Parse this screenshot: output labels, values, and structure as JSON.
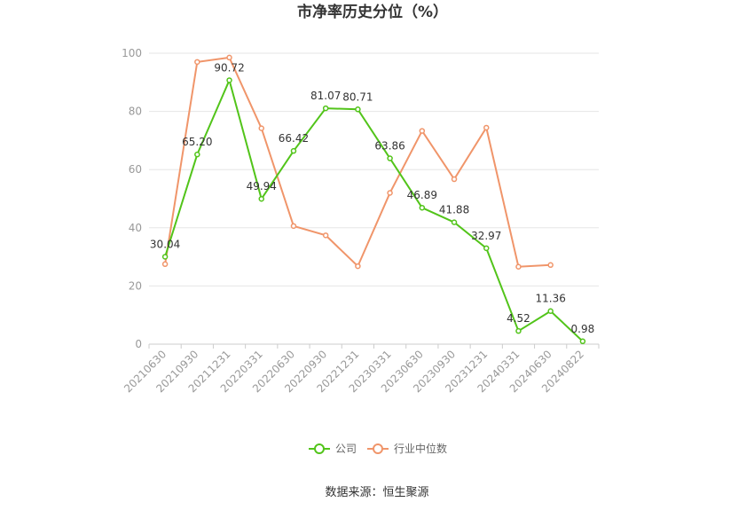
{
  "chart_data": {
    "type": "line",
    "title": "市净率历史分位（%）",
    "categories": [
      "20210630",
      "20210930",
      "20211231",
      "20220331",
      "20220630",
      "20220930",
      "20221231",
      "20230331",
      "20230630",
      "20230930",
      "20231231",
      "20240331",
      "20240630",
      "20240822"
    ],
    "ylim": [
      0,
      100
    ],
    "yticks": [
      0,
      20,
      40,
      60,
      80,
      100
    ],
    "grid": true,
    "legend_position": "bottom",
    "series": [
      {
        "name": "公司",
        "color": "#52c41a",
        "values": [
          30.04,
          65.2,
          90.72,
          49.94,
          66.42,
          81.07,
          80.71,
          63.86,
          46.89,
          41.88,
          32.97,
          4.52,
          11.36,
          0.98
        ],
        "labels": [
          "30.04",
          "65.20",
          "90.72",
          "49.94",
          "66.42",
          "81.07",
          "80.71",
          "63.86",
          "46.89",
          "41.88",
          "32.97",
          "4.52",
          "11.36",
          "0.98"
        ]
      },
      {
        "name": "行业中位数",
        "color": "#f0956a",
        "values": [
          27.5,
          97.0,
          98.5,
          74.2,
          40.6,
          37.4,
          26.8,
          52.0,
          73.3,
          56.7,
          74.4,
          26.6,
          27.2,
          null
        ]
      }
    ]
  },
  "source": "数据来源：恒生聚源"
}
